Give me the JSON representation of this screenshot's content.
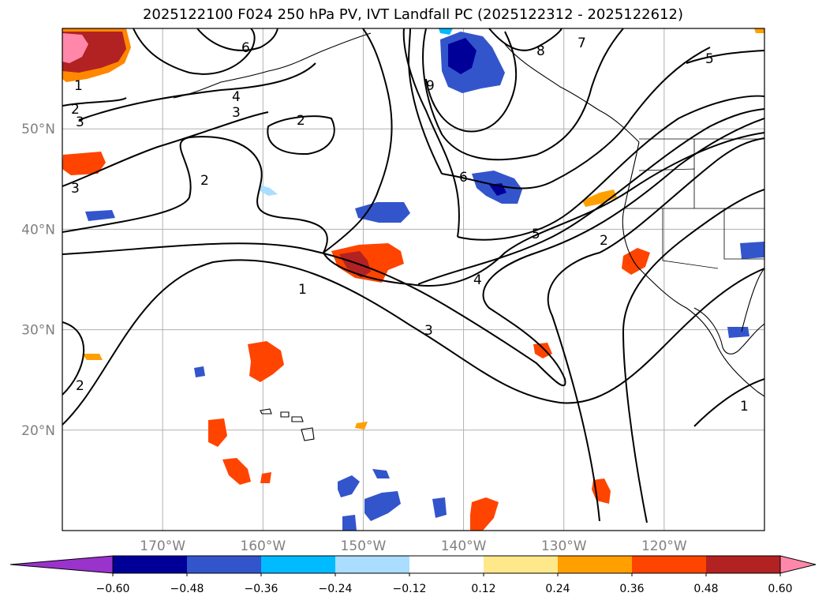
{
  "title": "2025122100 F024 250 hPa PV, IVT Landfall PC (2025122312 - 2025122612)",
  "map": {
    "lon_range": [
      -180,
      -110
    ],
    "lat_range": [
      10,
      60
    ],
    "lon_ticks": [
      {
        "lon": -170,
        "label": "170°W"
      },
      {
        "lon": -160,
        "label": "160°W"
      },
      {
        "lon": -150,
        "label": "150°W"
      },
      {
        "lon": -140,
        "label": "140°W"
      },
      {
        "lon": -130,
        "label": "130°W"
      },
      {
        "lon": -120,
        "label": "120°W"
      }
    ],
    "lat_ticks": [
      {
        "lat": 50,
        "label": "50°N"
      },
      {
        "lat": 40,
        "label": "40°N"
      },
      {
        "lat": 30,
        "label": "30°N"
      },
      {
        "lat": 20,
        "label": "20°N"
      }
    ],
    "grid": true,
    "pv_contour_levels": [
      "1",
      "2",
      "3",
      "4",
      "5",
      "6",
      "7",
      "8",
      "9"
    ]
  },
  "colorbar": {
    "labels": [
      "−0.60",
      "−0.48",
      "−0.36",
      "−0.24",
      "−0.12",
      "0.12",
      "0.24",
      "0.36",
      "0.48",
      "0.60"
    ],
    "colors": [
      "#9933cc",
      "#000099",
      "#3355cc",
      "#00bbff",
      "#aaddff",
      "#ffffff",
      "#ffe88a",
      "#ffa000",
      "#ff4400",
      "#b22222",
      "#ff88aa"
    ],
    "extend": "both"
  }
}
